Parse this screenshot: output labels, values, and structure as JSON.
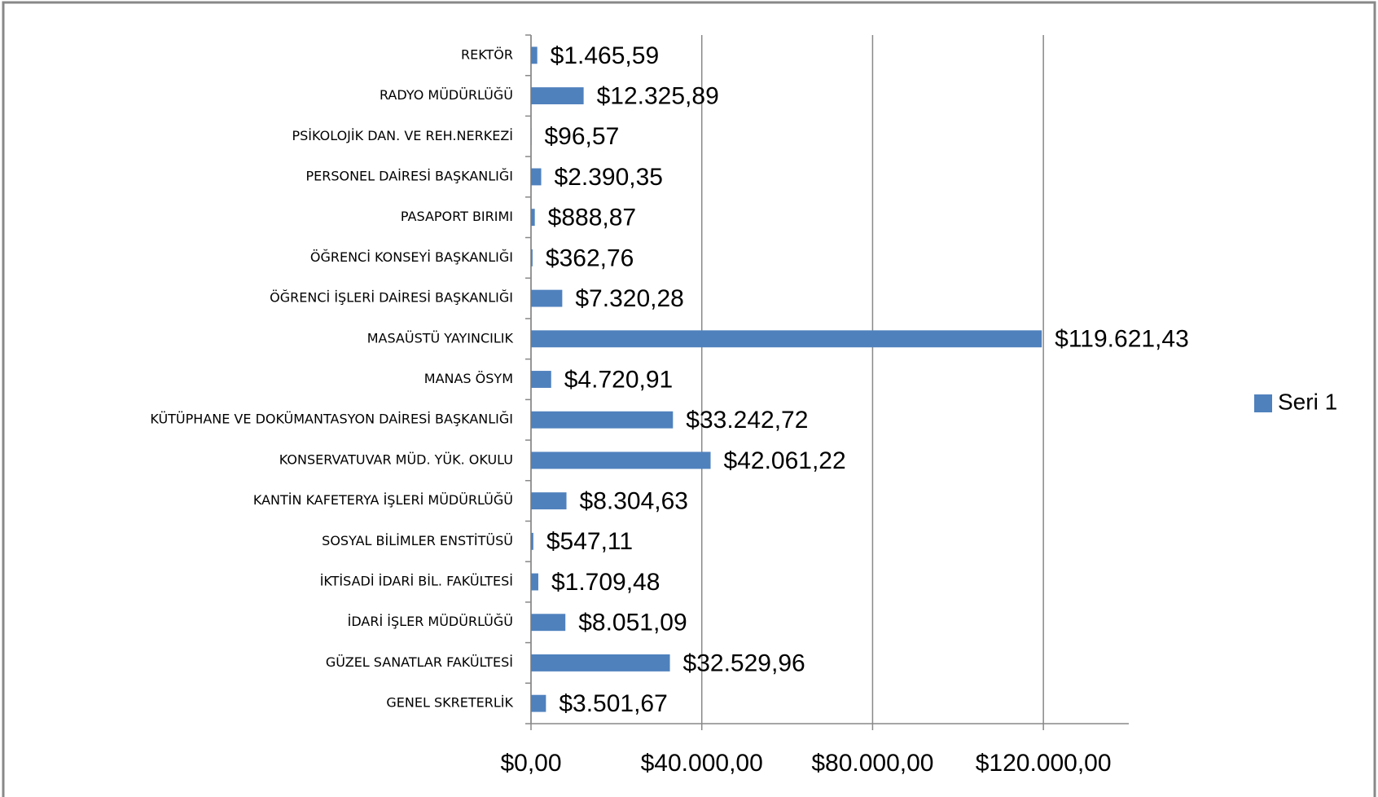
{
  "chart_data": {
    "type": "bar",
    "orientation": "horizontal",
    "categories": [
      "REKTÖR",
      "RADYO MÜDÜRLÜĞÜ",
      "PSİKOLOJİK DAN. VE REH.NERKEZİ",
      "PERSONEL DAİRESİ BAŞKANLIĞI",
      "PASAPORT BIRIMI",
      "ÖĞRENCİ KONSEYİ BAŞKANLIĞI",
      "ÖĞRENCİ İŞLERİ DAİRESİ BAŞKANLIĞI",
      "MASAÜSTÜ YAYINCILIK",
      "MANAS ÖSYM",
      "KÜTÜPHANE VE DOKÜMANTASYON DAİRESİ BAŞKANLIĞI",
      "KONSERVATUVAR MÜD. YÜK. OKULU",
      "KANTİN KAFETERYA İŞLERİ MÜDÜRLÜĞÜ",
      "SOSYAL BİLİMLER ENSTİTÜSÜ",
      "İKTİSADİ İDARİ BİL. FAKÜLTESİ",
      "İDARİ İŞLER MÜDÜRLÜĞÜ",
      "GÜZEL SANATLAR FAKÜLTESİ",
      "GENEL SKRETERLİK"
    ],
    "series": [
      {
        "name": "Seri 1",
        "color": "#4f81bd",
        "values": [
          1465.59,
          12325.89,
          96.57,
          2390.35,
          888.87,
          362.76,
          7320.28,
          119621.43,
          4720.91,
          33242.72,
          42061.22,
          8304.63,
          547.11,
          1709.48,
          8051.09,
          32529.96,
          3501.67
        ],
        "value_labels": [
          "$1.465,59",
          "$12.325,89",
          "$96,57",
          "$2.390,35",
          "$888,87",
          "$362,76",
          "$7.320,28",
          "$119.621,43",
          "$4.720,91",
          "$33.242,72",
          "$42.061,22",
          "$8.304,63",
          "$547,11",
          "$1.709,48",
          "$8.051,09",
          "$32.529,96",
          "$3.501,67"
        ]
      }
    ],
    "xlim": [
      0,
      140000
    ],
    "xticks": [
      {
        "value": 0,
        "label": "$0,00"
      },
      {
        "value": 40000,
        "label": "$40.000,00"
      },
      {
        "value": 80000,
        "label": "$80.000,00"
      },
      {
        "value": 120000,
        "label": "$120.000,00"
      }
    ],
    "grid": true,
    "legend": "right"
  }
}
